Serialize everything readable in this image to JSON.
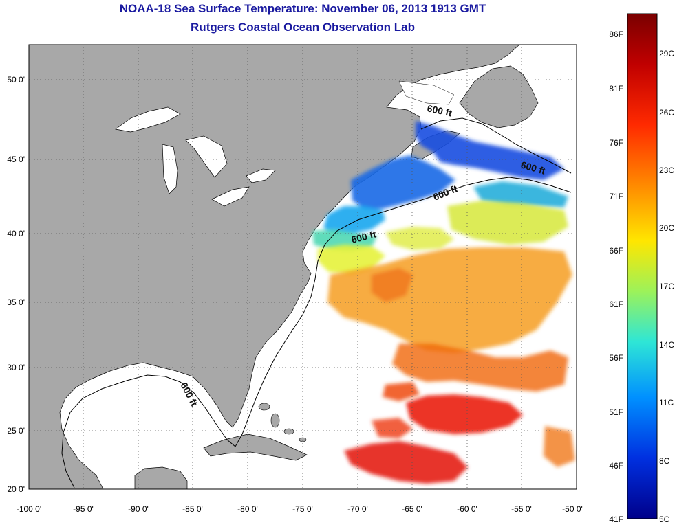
{
  "title": "NOAA-18 Sea Surface Temperature:  November 06, 2013 1913 GMT",
  "subtitle": "Rutgers Coastal Ocean Observation Lab",
  "map": {
    "lon_range": [
      -100,
      -50
    ],
    "lat_range": [
      20,
      52.5
    ],
    "lon_ticks": [
      "-100 0'",
      "-95 0'",
      "-90 0'",
      "-85 0'",
      "-80 0'",
      "-75 0'",
      "-70 0'",
      "-65 0'",
      "-60 0'",
      "-55 0'",
      "-50 0'"
    ],
    "lat_ticks": [
      "20 0'",
      "25 0'",
      "30 0'",
      "35 0'",
      "40 0'",
      "45 0'",
      "50 0'"
    ],
    "grid": "dotted",
    "land_color": "#a8a8a8",
    "no_data_color": "#ffffff",
    "contour_label": "600 ft",
    "contour_label_count": 5
  },
  "colorbar": {
    "fahrenheit_labels": [
      "86F",
      "81F",
      "76F",
      "71F",
      "66F",
      "61F",
      "56F",
      "51F",
      "46F",
      "41F"
    ],
    "celsius_labels": [
      "29C",
      "26C",
      "23C",
      "20C",
      "17C",
      "14C",
      "11C",
      "8C",
      "5C"
    ],
    "range_c": [
      5,
      31
    ],
    "colormap": [
      "#7a0000",
      "#d40000",
      "#ff4a00",
      "#ff9a00",
      "#ffe600",
      "#9cf25a",
      "#2ee6d6",
      "#0090ff",
      "#0030e0",
      "#00008a"
    ]
  }
}
